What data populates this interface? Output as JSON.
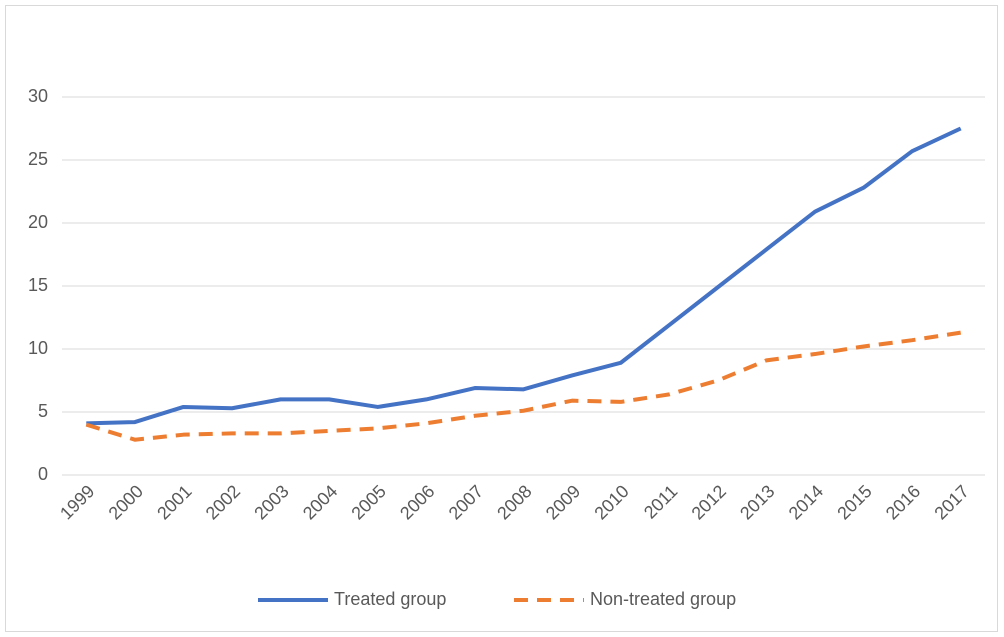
{
  "chart_data": {
    "type": "line",
    "categories": [
      "1999",
      "2000",
      "2001",
      "2002",
      "2003",
      "2004",
      "2005",
      "2006",
      "2007",
      "2008",
      "2009",
      "2010",
      "2011",
      "2012",
      "2013",
      "2014",
      "2015",
      "2016",
      "2017"
    ],
    "series": [
      {
        "name": "Treated group",
        "color": "#4472c4",
        "style": "solid",
        "values": [
          4.1,
          4.2,
          5.4,
          5.3,
          6.0,
          6.0,
          5.4,
          6.0,
          6.9,
          6.8,
          7.9,
          8.9,
          11.9,
          14.9,
          17.9,
          20.9,
          22.8,
          25.7,
          27.5
        ]
      },
      {
        "name": "Non-treated group",
        "color": "#ed7d31",
        "style": "dashed",
        "values": [
          4.0,
          2.8,
          3.2,
          3.3,
          3.3,
          3.5,
          3.7,
          4.1,
          4.7,
          5.1,
          5.9,
          5.8,
          6.4,
          7.5,
          9.1,
          9.6,
          10.2,
          10.7,
          11.3
        ]
      }
    ],
    "ylim": [
      0,
      30
    ],
    "yticks": [
      0,
      5,
      10,
      15,
      20,
      25,
      30
    ],
    "grid": true,
    "legend": "bottom"
  }
}
